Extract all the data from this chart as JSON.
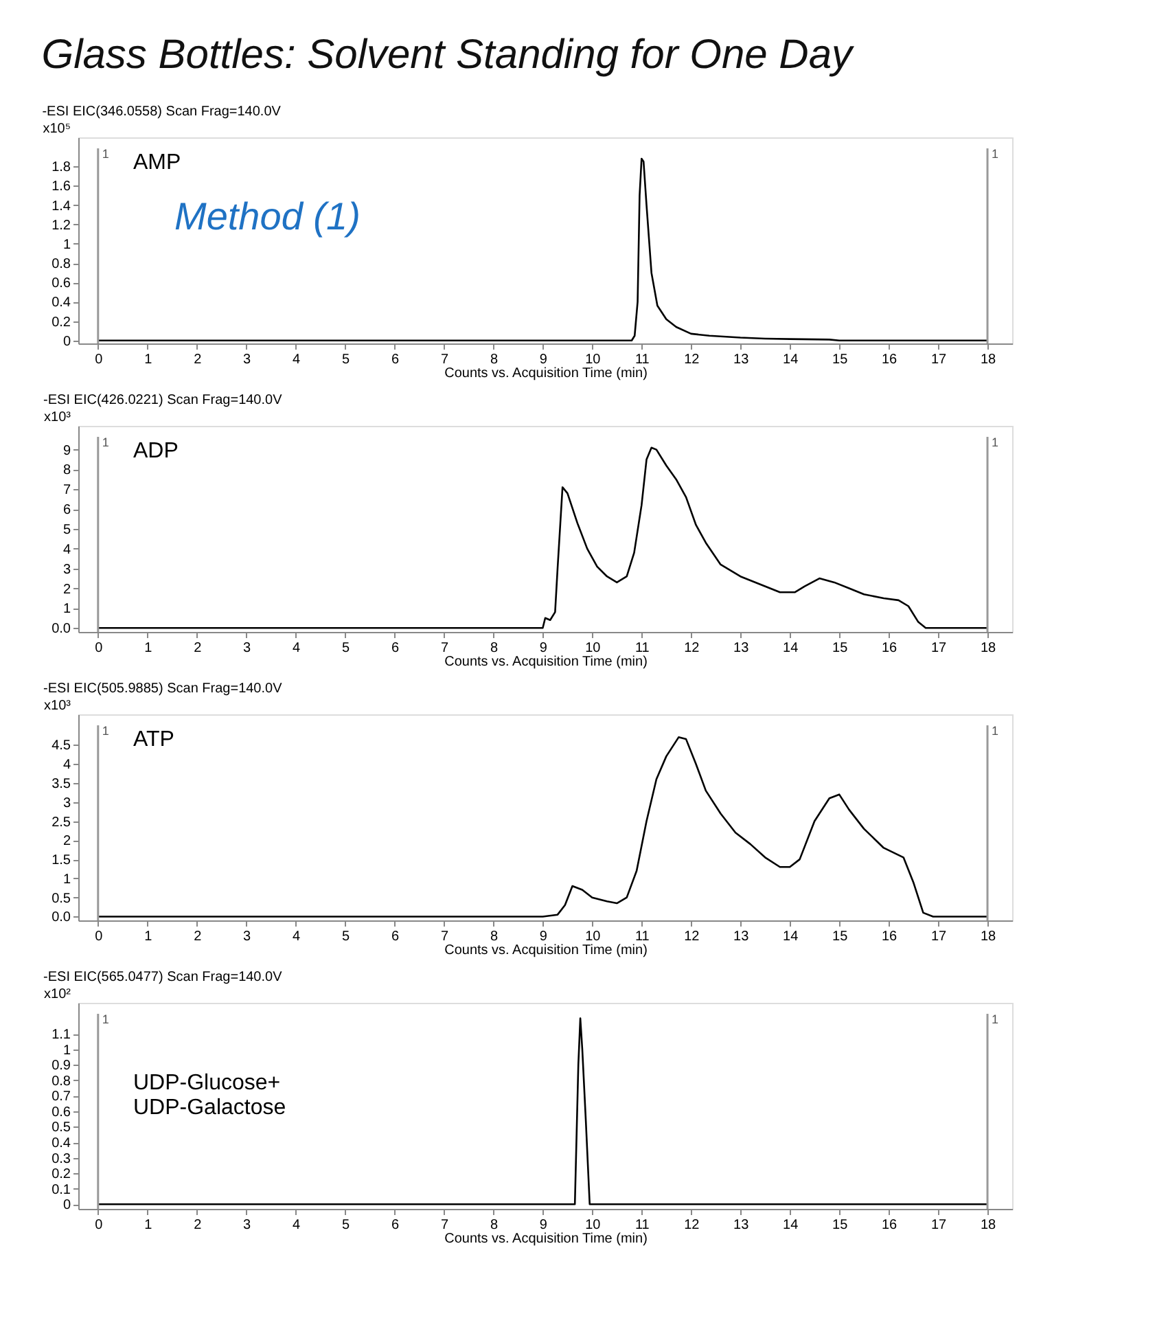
{
  "chart_data": [
    {
      "type": "line",
      "title": "Glass Bottles: Solvent Standing for One Day",
      "subtitle": "-ESI  EIC(346.0558)  Scan  Frag=140.0V",
      "xlabel": "Counts vs. Acquisition Time (min)",
      "ylabel": "x10⁵",
      "annotations": [
        "1",
        "1",
        "AMP",
        "Method (1)"
      ],
      "xlim": [
        -0.4,
        18.5
      ],
      "xticks": [
        0,
        1,
        2,
        3,
        4,
        5,
        6,
        7,
        8,
        9,
        10,
        11,
        12,
        13,
        14,
        15,
        16,
        17,
        18
      ],
      "ylim": [
        -0.03,
        2.1
      ],
      "yticks": [
        0,
        0.2,
        0.4,
        0.6,
        0.8,
        1,
        1.2,
        1.4,
        1.6,
        1.8
      ],
      "ref_lines": [
        {
          "axis": "x",
          "value": 0,
          "color": "#999999"
        },
        {
          "axis": "x",
          "value": 18,
          "color": "#999999"
        }
      ],
      "series": [
        {
          "color": "#000000",
          "x": [
            0,
            10.8,
            10.86,
            10.92,
            10.96,
            11.0,
            11.04,
            11.1,
            11.2,
            11.32,
            11.5,
            11.7,
            12.0,
            12.37,
            13.0,
            13.5,
            14.0,
            14.8,
            15.0,
            18
          ],
          "values": [
            0,
            0,
            0.05,
            0.4,
            1.5,
            1.88,
            1.85,
            1.4,
            0.7,
            0.36,
            0.22,
            0.14,
            0.07,
            0.05,
            0.03,
            0.02,
            0.015,
            0.01,
            0,
            0
          ]
        }
      ]
    },
    {
      "type": "line",
      "subtitle": "-ESI  EIC(426.0221)  Scan  Frag=140.0V",
      "xlabel": "Counts vs. Acquisition Time (min)",
      "ylabel": "x10³",
      "annotations": [
        "1",
        "1",
        "ADP"
      ],
      "xlim": [
        -0.4,
        18.5
      ],
      "xticks": [
        0,
        1,
        2,
        3,
        4,
        5,
        6,
        7,
        8,
        9,
        10,
        11,
        12,
        13,
        14,
        15,
        16,
        17,
        18
      ],
      "ylim": [
        -0.2,
        10.2
      ],
      "yticks": [
        {
          "value": 0,
          "label": "0.0"
        },
        1,
        2,
        3,
        4,
        5,
        6,
        7,
        8,
        9
      ],
      "ref_lines": [
        {
          "axis": "x",
          "value": 0,
          "color": "#999999"
        },
        {
          "axis": "x",
          "value": 18,
          "color": "#999999"
        }
      ],
      "series": [
        {
          "color": "#000000",
          "x": [
            0,
            9.0,
            9.05,
            9.15,
            9.25,
            9.3,
            9.4,
            9.5,
            9.7,
            9.9,
            10.1,
            10.3,
            10.5,
            10.7,
            10.85,
            11.0,
            11.1,
            11.2,
            11.3,
            11.5,
            11.7,
            11.9,
            12.1,
            12.3,
            12.6,
            13.0,
            13.4,
            13.8,
            14.1,
            14.3,
            14.6,
            14.9,
            15.2,
            15.5,
            15.9,
            16.2,
            16.4,
            16.6,
            16.75,
            18
          ],
          "values": [
            0,
            0,
            0.5,
            0.4,
            0.8,
            3,
            7.1,
            6.8,
            5.3,
            4,
            3.1,
            2.6,
            2.3,
            2.6,
            3.8,
            6.2,
            8.5,
            9.1,
            9.0,
            8.2,
            7.5,
            6.6,
            5.2,
            4.3,
            3.2,
            2.6,
            2.2,
            1.8,
            1.8,
            2.1,
            2.5,
            2.3,
            2.0,
            1.7,
            1.5,
            1.4,
            1.1,
            0.3,
            0,
            0
          ]
        }
      ]
    },
    {
      "type": "line",
      "subtitle": "-ESI  EIC(505.9885)  Scan  Frag=140.0V",
      "xlabel": "Counts vs. Acquisition Time (min)",
      "ylabel": "x10³",
      "annotations": [
        "1",
        "1",
        "ATP"
      ],
      "xlim": [
        -0.4,
        18.5
      ],
      "xticks": [
        0,
        1,
        2,
        3,
        4,
        5,
        6,
        7,
        8,
        9,
        10,
        11,
        12,
        13,
        14,
        15,
        16,
        17,
        18
      ],
      "ylim": [
        -0.1,
        5.3
      ],
      "yticks": [
        {
          "value": 0,
          "label": "0.0"
        },
        0.5,
        1,
        1.5,
        2,
        2.5,
        3,
        3.5,
        4,
        4.5
      ],
      "ref_lines": [
        {
          "axis": "x",
          "value": 0,
          "color": "#999999"
        },
        {
          "axis": "x",
          "value": 18,
          "color": "#999999"
        }
      ],
      "series": [
        {
          "color": "#000000",
          "x": [
            0,
            9.0,
            9.3,
            9.45,
            9.6,
            9.8,
            10.0,
            10.3,
            10.5,
            10.7,
            10.9,
            11.1,
            11.3,
            11.5,
            11.75,
            11.9,
            12.1,
            12.3,
            12.6,
            12.9,
            13.2,
            13.5,
            13.8,
            14.0,
            14.2,
            14.5,
            14.8,
            15.0,
            15.2,
            15.5,
            15.9,
            16.3,
            16.5,
            16.7,
            16.9,
            18
          ],
          "values": [
            0,
            0,
            0.05,
            0.3,
            0.8,
            0.7,
            0.5,
            0.4,
            0.35,
            0.5,
            1.2,
            2.5,
            3.6,
            4.2,
            4.7,
            4.65,
            4.0,
            3.3,
            2.7,
            2.2,
            1.9,
            1.55,
            1.3,
            1.3,
            1.5,
            2.5,
            3.1,
            3.2,
            2.8,
            2.3,
            1.8,
            1.55,
            0.9,
            0.1,
            0,
            0
          ]
        }
      ]
    },
    {
      "type": "line",
      "subtitle": "-ESI  EIC(565.0477)  Scan  Frag=140.0V",
      "xlabel": "Counts vs. Acquisition Time (min)",
      "ylabel": "x10²",
      "annotations": [
        "1",
        "1",
        "UDP-Glucose+\nUDP-Galactose"
      ],
      "xlim": [
        -0.4,
        18.5
      ],
      "xticks": [
        0,
        1,
        2,
        3,
        4,
        5,
        6,
        7,
        8,
        9,
        10,
        11,
        12,
        13,
        14,
        15,
        16,
        17,
        18
      ],
      "ylim": [
        -0.03,
        1.3
      ],
      "yticks": [
        0,
        0.1,
        0.2,
        0.3,
        0.4,
        0.5,
        0.6,
        0.7,
        0.8,
        0.9,
        1,
        1.1
      ],
      "ref_lines": [
        {
          "axis": "x",
          "value": 0,
          "color": "#999999"
        },
        {
          "axis": "x",
          "value": 18,
          "color": "#999999"
        }
      ],
      "series": [
        {
          "color": "#000000",
          "x": [
            0,
            9.65,
            9.72,
            9.76,
            9.8,
            9.87,
            9.95,
            18
          ],
          "values": [
            0,
            0,
            0.9,
            1.2,
            1.0,
            0.55,
            0,
            0
          ]
        }
      ]
    }
  ]
}
